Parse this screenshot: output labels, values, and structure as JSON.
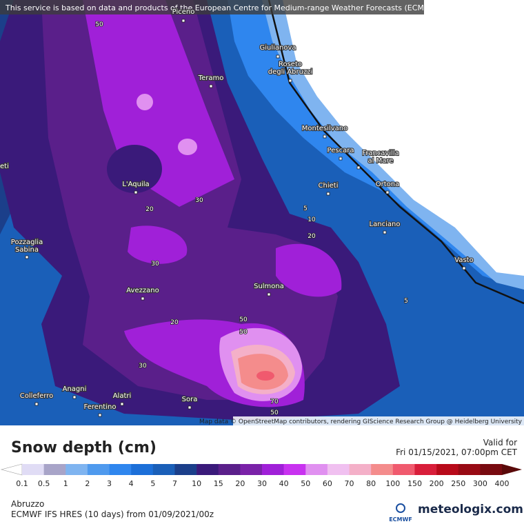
{
  "header": {
    "notice": "This service is based on data and products of the European Centre for Medium-range Weather Forecasts (ECMWF)"
  },
  "map": {
    "cities": [
      {
        "lines": [
          "Piceno"
        ]
      },
      {
        "lines": [
          "Giulianova"
        ]
      },
      {
        "lines": [
          "Roseto",
          "degli Abruzzi"
        ]
      },
      {
        "lines": [
          "Teramo"
        ]
      },
      {
        "lines": [
          "Montesilvano"
        ]
      },
      {
        "lines": [
          "Pescara"
        ]
      },
      {
        "lines": [
          "Francavilla",
          "al Mare"
        ]
      },
      {
        "lines": [
          "Chieti"
        ]
      },
      {
        "lines": [
          "Ortona"
        ]
      },
      {
        "lines": [
          "Lanciano"
        ]
      },
      {
        "lines": [
          "Vasto"
        ]
      },
      {
        "lines": [
          "L'Aquila"
        ]
      },
      {
        "lines": [
          "Pozzaglia",
          "Sabina"
        ]
      },
      {
        "lines": [
          "Avezzano"
        ]
      },
      {
        "lines": [
          "Sulmona"
        ]
      },
      {
        "lines": [
          "Colleferro"
        ]
      },
      {
        "lines": [
          "Anagni"
        ]
      },
      {
        "lines": [
          "Alatri"
        ]
      },
      {
        "lines": [
          "Ferentino"
        ]
      },
      {
        "lines": [
          "Sora"
        ]
      },
      {
        "lines": [
          "eti"
        ]
      }
    ],
    "contour_labels": [
      "50",
      "30",
      "20",
      "30",
      "20",
      "30",
      "50",
      "50",
      "70",
      "50",
      "5",
      "10",
      "20",
      "5"
    ],
    "attribution": "Map data © OpenStreetMap contributors, rendering GIScience Research Group @ Heidelberg University"
  },
  "legend": {
    "title": "Snow depth (cm)",
    "valid_label": "Valid for",
    "valid_time": "Fri 01/15/2021, 07:00pm CET",
    "ticks": [
      "0.1",
      "0.5",
      "1",
      "2",
      "3",
      "4",
      "5",
      "7",
      "10",
      "15",
      "20",
      "30",
      "40",
      "50",
      "60",
      "70",
      "80",
      "100",
      "150",
      "200",
      "250",
      "300",
      "400"
    ],
    "colors": [
      "#e0dcf5",
      "#a8a4c8",
      "#7fb4f0",
      "#4f9aee",
      "#2f86ee",
      "#1c6fd8",
      "#1a5fb8",
      "#1b3f8a",
      "#3a1a7a",
      "#5a1f8a",
      "#7a22a8",
      "#a020d8",
      "#c832f0",
      "#e090f0",
      "#f0c0f0",
      "#f4b0c8",
      "#f48c8c",
      "#f05a6e",
      "#d81e3a",
      "#b80a1a",
      "#980a14",
      "#780a10"
    ],
    "low_color": "#ffffff",
    "high_color": "#5a0a0a"
  },
  "footer": {
    "region": "Abruzzo",
    "model": "ECMWF IFS HRES (10 days) from 01/09/2021/00z",
    "ecmwf_logo": "ECMWF",
    "brand": "meteologix.com"
  }
}
